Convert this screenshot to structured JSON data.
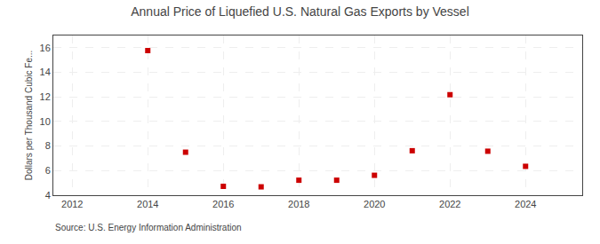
{
  "chart_data": {
    "type": "scatter",
    "title": "Annual Price of Liquefied U.S. Natural Gas Exports by Vessel",
    "ylabel": "Dollars per Thousand Cubic Fe...",
    "annotation": "Source: U.S. Energy Information Administration",
    "x": [
      2014,
      2015,
      2016,
      2017,
      2018,
      2019,
      2020,
      2021,
      2022,
      2023,
      2024
    ],
    "values": [
      15.77,
      7.5,
      4.72,
      4.68,
      5.22,
      5.22,
      5.62,
      7.62,
      12.18,
      7.58,
      6.35
    ],
    "color": "#cc0000",
    "marker": "square",
    "xlim": [
      2011.5,
      2025.5
    ],
    "ylim": [
      4,
      17
    ],
    "xticks": [
      2012,
      2014,
      2016,
      2018,
      2020,
      2022,
      2024
    ],
    "yticks": [
      4,
      6,
      8,
      10,
      12,
      14,
      16
    ],
    "grid": true
  }
}
